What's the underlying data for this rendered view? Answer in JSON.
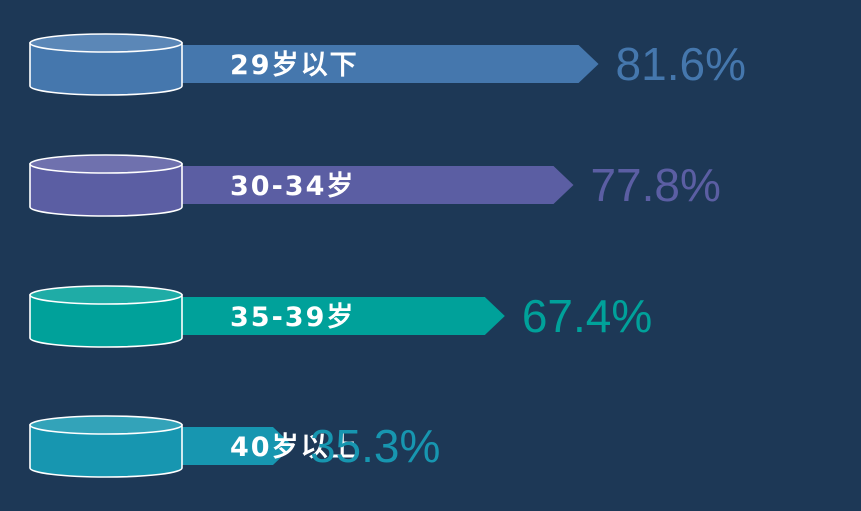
{
  "chart_data": {
    "type": "bar",
    "orientation": "horizontal",
    "title": "",
    "xlabel": "",
    "ylabel": "",
    "xlim": [
      0,
      100
    ],
    "categories": [
      "29岁以下",
      "30-34岁",
      "35-39岁",
      "40岁以上"
    ],
    "values": [
      81.6,
      77.8,
      67.4,
      35.3
    ],
    "value_labels": [
      "81.6%",
      "77.8%",
      "67.4%",
      "35.3%"
    ],
    "colors": [
      "#4577ad",
      "#5b5ea3",
      "#00a19a",
      "#1796b0"
    ],
    "label_color": "#ffffff",
    "background": "#1d3856",
    "grid": false,
    "legend": "none"
  }
}
